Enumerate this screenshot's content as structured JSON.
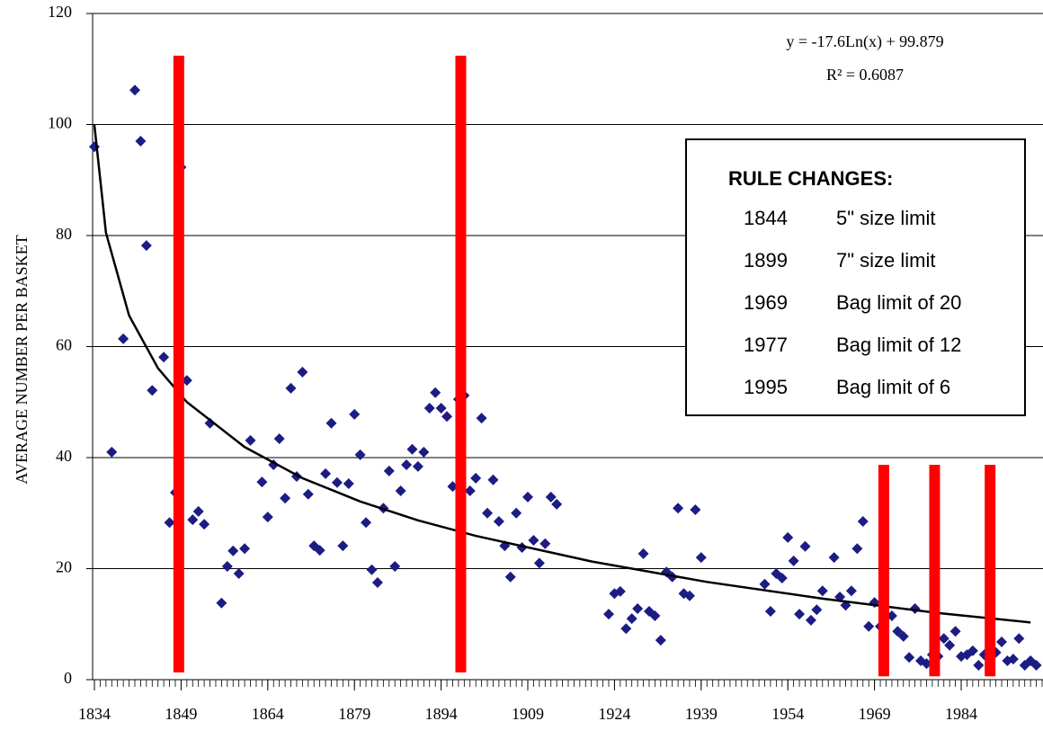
{
  "chart_data": {
    "type": "scatter",
    "ylabel": "AVERAGE NUMBER PER BASKET",
    "xlim": [
      1834,
      1998
    ],
    "ylim": [
      0,
      120
    ],
    "xticks": [
      1834,
      1849,
      1864,
      1879,
      1894,
      1909,
      1924,
      1939,
      1954,
      1969,
      1984
    ],
    "yticks": [
      0,
      20,
      40,
      60,
      80,
      100,
      120
    ],
    "x_minor_tick_step": 1,
    "grid": true,
    "color": "#1c1c84",
    "x": [
      1834,
      1837,
      1839,
      1841,
      1842,
      1843,
      1844,
      1846,
      1847,
      1848,
      1849,
      1850,
      1851,
      1852,
      1853,
      1854,
      1856,
      1857,
      1858,
      1859,
      1860,
      1861,
      1863,
      1864,
      1865,
      1866,
      1867,
      1868,
      1869,
      1870,
      1871,
      1872,
      1873,
      1874,
      1875,
      1876,
      1877,
      1878,
      1879,
      1880,
      1881,
      1882,
      1883,
      1884,
      1885,
      1886,
      1887,
      1888,
      1889,
      1890,
      1891,
      1892,
      1893,
      1894,
      1895,
      1896,
      1897,
      1898,
      1899,
      1900,
      1901,
      1902,
      1903,
      1904,
      1905,
      1906,
      1907,
      1908,
      1909,
      1910,
      1911,
      1912,
      1913,
      1914,
      1923,
      1924,
      1925,
      1926,
      1927,
      1928,
      1929,
      1930,
      1931,
      1932,
      1933,
      1934,
      1935,
      1936,
      1937,
      1938,
      1939,
      1950,
      1951,
      1952,
      1953,
      1954,
      1955,
      1956,
      1957,
      1958,
      1959,
      1960,
      1962,
      1963,
      1964,
      1965,
      1966,
      1967,
      1968,
      1969,
      1970,
      1972,
      1973,
      1974,
      1975,
      1976,
      1977,
      1978,
      1979,
      1980,
      1981,
      1982,
      1983,
      1984,
      1985,
      1986,
      1987,
      1988,
      1989,
      1990,
      1991,
      1992,
      1993,
      1994,
      1995,
      1996,
      1997
    ],
    "y": [
      96,
      41,
      61.4,
      106.2,
      97,
      78.2,
      52.1,
      58.1,
      28.3,
      33.7,
      92.3,
      53.9,
      28.8,
      30.3,
      28,
      46.2,
      13.8,
      20.4,
      23.2,
      19.1,
      23.6,
      43.1,
      35.6,
      29.3,
      38.7,
      43.4,
      32.7,
      52.5,
      36.6,
      55.4,
      33.4,
      24.1,
      23.3,
      37.1,
      46.2,
      35.5,
      24.1,
      35.3,
      47.8,
      40.5,
      28.3,
      19.8,
      17.5,
      30.9,
      37.6,
      20.4,
      34,
      38.7,
      41.5,
      38.4,
      41,
      48.9,
      51.7,
      48.9,
      47.4,
      34.8,
      50.5,
      51.2,
      34,
      36.3,
      47.1,
      30,
      36,
      28.5,
      24.1,
      18.5,
      30,
      23.8,
      32.9,
      25.1,
      21,
      24.5,
      32.9,
      31.6,
      11.8,
      15.5,
      15.9,
      9.2,
      11,
      12.8,
      22.7,
      12.3,
      11.5,
      7.1,
      19.4,
      18.5,
      30.9,
      15.5,
      15.1,
      30.6,
      22,
      17.2,
      12.3,
      19.1,
      18.3,
      25.6,
      21.4,
      11.8,
      24,
      10.7,
      12.6,
      16,
      22,
      14.9,
      13.4,
      16,
      23.6,
      28.5,
      9.6,
      13.9,
      9.6,
      11.5,
      8.7,
      7.8,
      4,
      12.8,
      3.4,
      2.9,
      4.5,
      4.2,
      7.4,
      6.2,
      8.7,
      4.2,
      4.5,
      5.2,
      2.6,
      4.5,
      2.1,
      4.9,
      6.8,
      3.4,
      3.7,
      7.4,
      2.6,
      3.4,
      2.6
    ],
    "trendline": {
      "equation": "y = -17.6Ln(x) + 99.879",
      "r_squared": "R² = 0.6087",
      "color": "#000000",
      "x": [
        1834,
        1836,
        1840,
        1845,
        1850,
        1860,
        1870,
        1880,
        1890,
        1900,
        1920,
        1940,
        1960,
        1980,
        1996
      ],
      "y": [
        99.9,
        80.5,
        65.6,
        56.1,
        50,
        41.9,
        36.3,
        32.1,
        28.7,
        25.9,
        21.3,
        17.6,
        14.6,
        12,
        10.3
      ]
    },
    "rule_lines": {
      "color": "#ff0000",
      "x": [
        1848.6,
        1897.4,
        1970.6,
        1979.4,
        1989
      ],
      "y_top": [
        112.4,
        112.4,
        38.7,
        38.7,
        38.7
      ],
      "y_bottom": [
        1.3,
        1.3,
        0.6,
        0.6,
        0.6
      ]
    },
    "rule_changes": {
      "title": "RULE CHANGES:",
      "items": [
        {
          "year": "1844",
          "text": "5\" size limit"
        },
        {
          "year": "1899",
          "text": "7\" size limit"
        },
        {
          "year": "1969",
          "text": "Bag limit of 20"
        },
        {
          "year": "1977",
          "text": "Bag limit of 12"
        },
        {
          "year": "1995",
          "text": "Bag limit of 6"
        }
      ]
    }
  }
}
